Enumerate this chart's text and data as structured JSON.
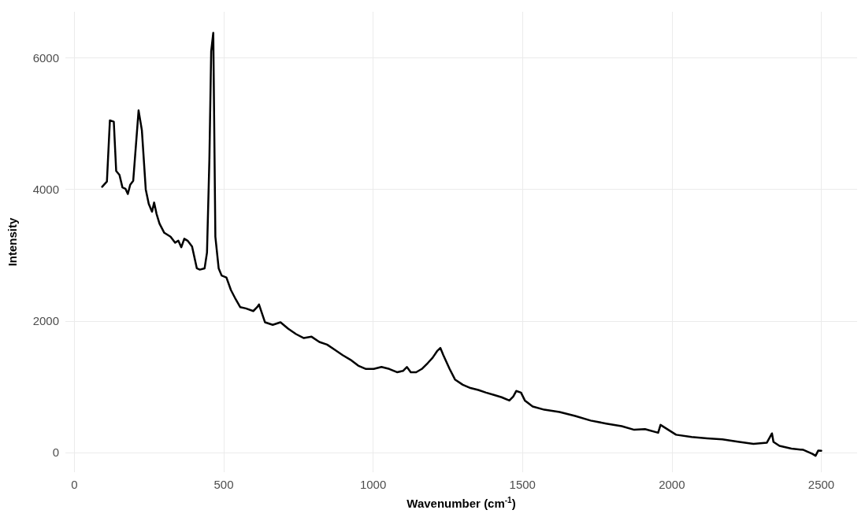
{
  "chart_data": {
    "type": "line",
    "xlabel": "Wavenumber (cm$^{-1}$)",
    "ylabel": "Intensity",
    "xlim": [
      -30,
      2620
    ],
    "xticks": [
      0,
      500,
      1000,
      1500,
      2000,
      2500
    ],
    "ylim": [
      -300,
      6700
    ],
    "yticks": [
      0,
      2000,
      4000,
      6000
    ],
    "grid": true,
    "marker": "none",
    "line_style": "solid",
    "series": [
      {
        "color": "#000000",
        "x": [
          93,
          109,
          119,
          132,
          140,
          151,
          161,
          171,
          179,
          187,
          197,
          215,
          226,
          239,
          249,
          260,
          267,
          275,
          285,
          301,
          322,
          337,
          348,
          358,
          368,
          379,
          394,
          410,
          420,
          436,
          444,
          452,
          458,
          465,
          472,
          483,
          493,
          509,
          524,
          540,
          555,
          574,
          599,
          612,
          618,
          638,
          664,
          690,
          716,
          742,
          768,
          794,
          820,
          846,
          872,
          898,
          924,
          950,
          976,
          1002,
          1028,
          1054,
          1080,
          1100,
          1113,
          1126,
          1144,
          1163,
          1183,
          1199,
          1214,
          1225,
          1235,
          1256,
          1274,
          1300,
          1326,
          1352,
          1378,
          1404,
          1430,
          1456,
          1469,
          1479,
          1495,
          1508,
          1534,
          1573,
          1624,
          1676,
          1728,
          1780,
          1832,
          1874,
          1910,
          1954,
          1962,
          2014,
          2066,
          2118,
          2169,
          2221,
          2273,
          2318,
          2335,
          2340,
          2360,
          2400,
          2440,
          2470,
          2481,
          2490,
          2500
        ],
        "values": [
          4040,
          4120,
          5050,
          5030,
          4280,
          4220,
          4030,
          4010,
          3930,
          4070,
          4130,
          5200,
          4900,
          4000,
          3780,
          3660,
          3800,
          3630,
          3480,
          3340,
          3280,
          3190,
          3220,
          3120,
          3250,
          3220,
          3130,
          2800,
          2780,
          2800,
          3040,
          4460,
          6100,
          6380,
          3280,
          2800,
          2690,
          2660,
          2470,
          2330,
          2210,
          2190,
          2150,
          2210,
          2250,
          1980,
          1940,
          1980,
          1880,
          1800,
          1740,
          1760,
          1680,
          1640,
          1560,
          1480,
          1410,
          1320,
          1270,
          1270,
          1300,
          1270,
          1220,
          1240,
          1300,
          1220,
          1220,
          1270,
          1360,
          1440,
          1540,
          1590,
          1480,
          1270,
          1110,
          1030,
          980,
          950,
          910,
          875,
          840,
          790,
          850,
          935,
          910,
          790,
          700,
          650,
          615,
          555,
          485,
          440,
          400,
          345,
          355,
          300,
          420,
          270,
          235,
          215,
          200,
          165,
          130,
          150,
          290,
          160,
          100,
          60,
          40,
          -20,
          -50,
          30,
          25
        ]
      }
    ]
  }
}
